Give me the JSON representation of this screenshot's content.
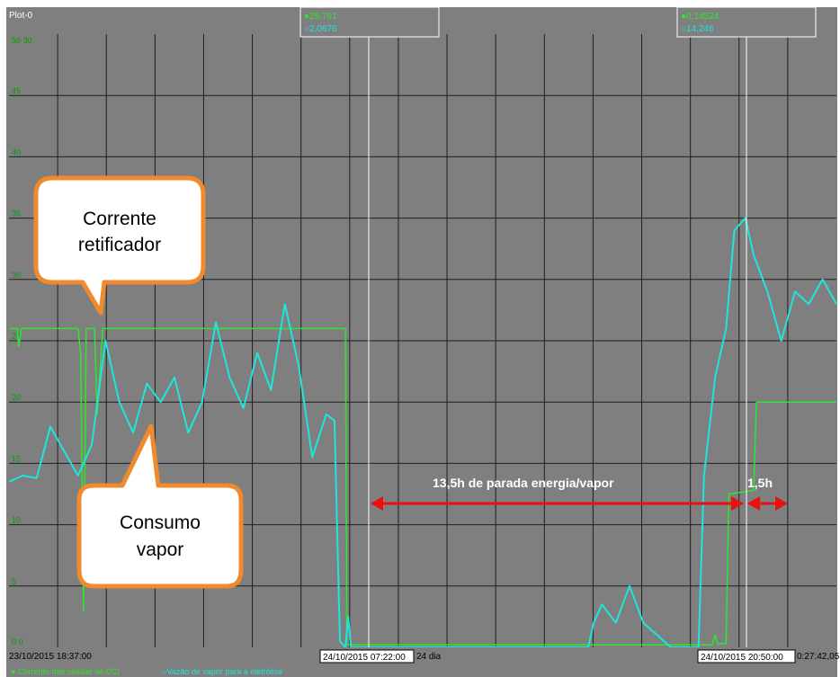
{
  "plot_name": "Plot-0",
  "colors": {
    "background": "#7f7f7f",
    "grid": "#1f1f1f",
    "series_green": "#2ee62e",
    "series_cyan": "#1ee6dc",
    "arrow": "#e81010",
    "bubble_border": "#f08a2c",
    "cursor_line": "#ffffff"
  },
  "cursors": [
    {
      "label": "24/10/2015 07:22:00",
      "green_value": "25,761",
      "cyan_value": "2,0676"
    },
    {
      "label": "24/10/2015 20:50:00",
      "green_value": "0,14524",
      "cyan_value": "14,246"
    }
  ],
  "time_axis": {
    "start": "23/10/2015 18:37:00",
    "span": "24 dia",
    "end_fragment": "0:27:42,05"
  },
  "annotations": {
    "bubble_top": [
      "Corrente",
      "retificador"
    ],
    "bubble_bottom": [
      "Consumo",
      "vapor"
    ],
    "arrow_long_label": "13,5h de parada energia/vapor",
    "arrow_short_label": "1,5h"
  },
  "legend": [
    {
      "marker": "●",
      "label": "Corrente das células de CCl",
      "color": "#2ee62e"
    },
    {
      "marker": "○",
      "label": "Vazão de vapor para a eletrólise",
      "color": "#1ee6dc"
    }
  ],
  "chart_data": {
    "type": "line",
    "x_unit": "hours since 23/10/2015 18:37:00",
    "y_ticks": [
      "0",
      "5",
      "10",
      "15",
      "20",
      "25",
      "30",
      "35",
      "40",
      "45",
      "50"
    ],
    "y_top_label": "50 30",
    "y_zero_label": "0 0",
    "ylim": [
      0,
      50
    ],
    "xlim": [
      0,
      30
    ],
    "grid": true,
    "series": [
      {
        "name": "Corrente das células de CCl",
        "color": "#2ee62e",
        "points": [
          [
            0,
            26
          ],
          [
            0.3,
            26
          ],
          [
            0.35,
            24.5
          ],
          [
            0.45,
            26
          ],
          [
            2.5,
            26
          ],
          [
            2.6,
            24
          ],
          [
            2.7,
            3
          ],
          [
            2.8,
            26
          ],
          [
            3.1,
            26
          ],
          [
            3.2,
            19
          ],
          [
            3.4,
            26
          ],
          [
            12.2,
            26
          ],
          [
            12.25,
            0.2
          ],
          [
            22.5,
            0.2
          ],
          [
            25,
            0.2
          ],
          [
            25.5,
            0.2
          ],
          [
            25.6,
            1
          ],
          [
            25.7,
            0.3
          ],
          [
            26,
            0.3
          ],
          [
            26.1,
            12.5
          ],
          [
            27,
            12.8
          ],
          [
            27.1,
            20
          ],
          [
            30,
            20
          ]
        ]
      },
      {
        "name": "Vazão de vapor para a eletrólise",
        "color": "#1ee6dc",
        "points": [
          [
            0,
            13.5
          ],
          [
            0.5,
            14
          ],
          [
            1,
            13.8
          ],
          [
            1.5,
            18
          ],
          [
            2,
            16
          ],
          [
            2.5,
            14
          ],
          [
            3,
            16.5
          ],
          [
            3.5,
            25
          ],
          [
            4,
            20
          ],
          [
            4.5,
            17.5
          ],
          [
            5,
            21.5
          ],
          [
            5.5,
            20
          ],
          [
            6,
            22
          ],
          [
            6.5,
            17.5
          ],
          [
            7,
            20
          ],
          [
            7.5,
            26.5
          ],
          [
            8,
            22
          ],
          [
            8.5,
            19.5
          ],
          [
            9,
            24
          ],
          [
            9.5,
            21
          ],
          [
            10,
            28
          ],
          [
            10.5,
            23
          ],
          [
            11,
            15.5
          ],
          [
            11.5,
            19
          ],
          [
            11.8,
            18.5
          ],
          [
            12,
            0.5
          ],
          [
            12.2,
            0
          ],
          [
            12.3,
            2.5
          ],
          [
            12.4,
            0
          ],
          [
            13,
            0
          ],
          [
            21,
            0
          ],
          [
            21.2,
            2
          ],
          [
            21.5,
            3.5
          ],
          [
            22,
            2
          ],
          [
            22.5,
            5
          ],
          [
            23,
            2
          ],
          [
            23.5,
            1
          ],
          [
            24,
            0
          ],
          [
            25,
            0
          ],
          [
            25.2,
            14
          ],
          [
            25.6,
            22
          ],
          [
            26,
            26
          ],
          [
            26.3,
            34
          ],
          [
            26.7,
            35
          ],
          [
            27,
            32
          ],
          [
            27.5,
            29
          ],
          [
            28,
            25
          ],
          [
            28.5,
            29
          ],
          [
            29,
            28
          ],
          [
            29.5,
            30
          ],
          [
            30,
            28
          ]
        ]
      }
    ]
  }
}
